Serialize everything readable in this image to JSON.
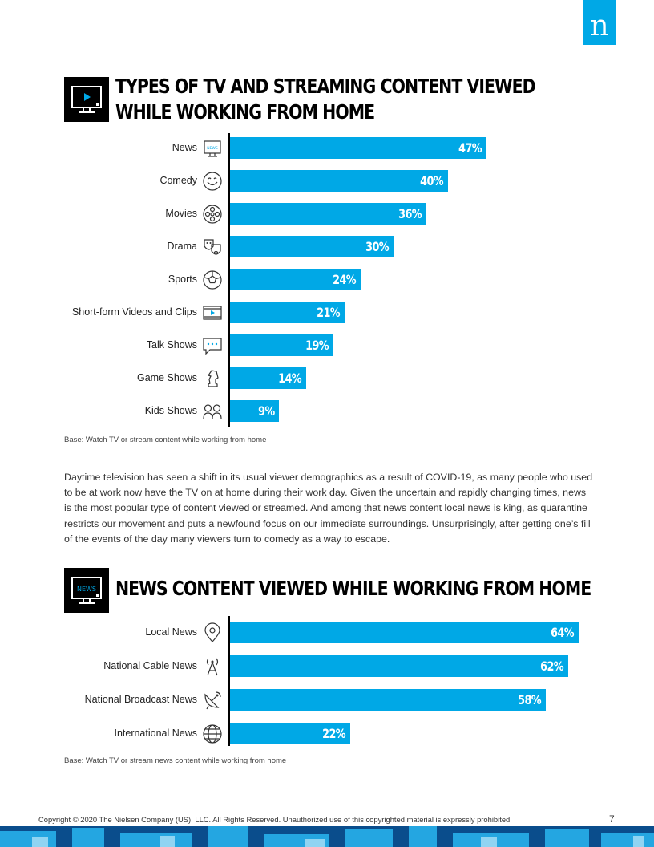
{
  "logo": {
    "letter": "n"
  },
  "section1": {
    "title_line1": "TYPES OF TV AND STREAMING CONTENT VIEWED",
    "title_line2": "WHILE WORKING FROM HOME",
    "base_note": "Base: Watch TV or stream content while working from home"
  },
  "paragraph": "Daytime television has seen a shift in its usual viewer demographics as a result of COVID-19, as many people who used to be at work now have the TV on at home during their work day. Given the uncertain and rapidly changing times, news is the most popular type of content viewed or streamed. And among that news content local news is king, as quarantine restricts our movement and puts a newfound focus on our immediate surroundings. Unsurprisingly, after getting one’s fill of the events of the day many viewers turn to comedy as a way to escape.",
  "section2": {
    "title": "NEWS CONTENT VIEWED WHILE WORKING FROM HOME",
    "icon_text": "NEWS",
    "base_note": "Base: Watch TV or stream news content while working from home"
  },
  "footer": {
    "copyright": "Copyright © 2020 The Nielsen Company (US), LLC. All Rights Reserved. Unauthorized use of this copyrighted material is expressly prohibited.",
    "page_number": "7"
  },
  "colors": {
    "accent": "#00a8e6",
    "text": "#222222",
    "icon_bg": "#000000"
  },
  "chart_data": [
    {
      "type": "bar",
      "orientation": "horizontal",
      "categories": [
        "News",
        "Comedy",
        "Movies",
        "Drama",
        "Sports",
        "Short-form Videos and Clips",
        "Talk Shows",
        "Game Shows",
        "Kids Shows"
      ],
      "values": [
        47,
        40,
        36,
        30,
        24,
        21,
        19,
        14,
        9
      ],
      "value_labels": [
        "47%",
        "40%",
        "36%",
        "30%",
        "24%",
        "21%",
        "19%",
        "14%",
        "9%"
      ],
      "icons": [
        "tv-news-icon",
        "smiley-icon",
        "film-reel-icon",
        "theater-masks-icon",
        "soccer-ball-icon",
        "film-strip-icon",
        "speech-bubble-icon",
        "chess-knight-icon",
        "kids-icon"
      ],
      "xlim": [
        0,
        100
      ],
      "grid": false,
      "color": "#00a8e6"
    },
    {
      "type": "bar",
      "orientation": "horizontal",
      "categories": [
        "Local News",
        "National Cable News",
        "National Broadcast News",
        "International News"
      ],
      "values": [
        64,
        62,
        58,
        22
      ],
      "value_labels": [
        "64%",
        "62%",
        "58%",
        "22%"
      ],
      "icons": [
        "location-pin-icon",
        "antenna-tower-icon",
        "satellite-dish-icon",
        "globe-icon"
      ],
      "xlim": [
        0,
        100
      ],
      "grid": false,
      "color": "#00a8e6"
    }
  ]
}
